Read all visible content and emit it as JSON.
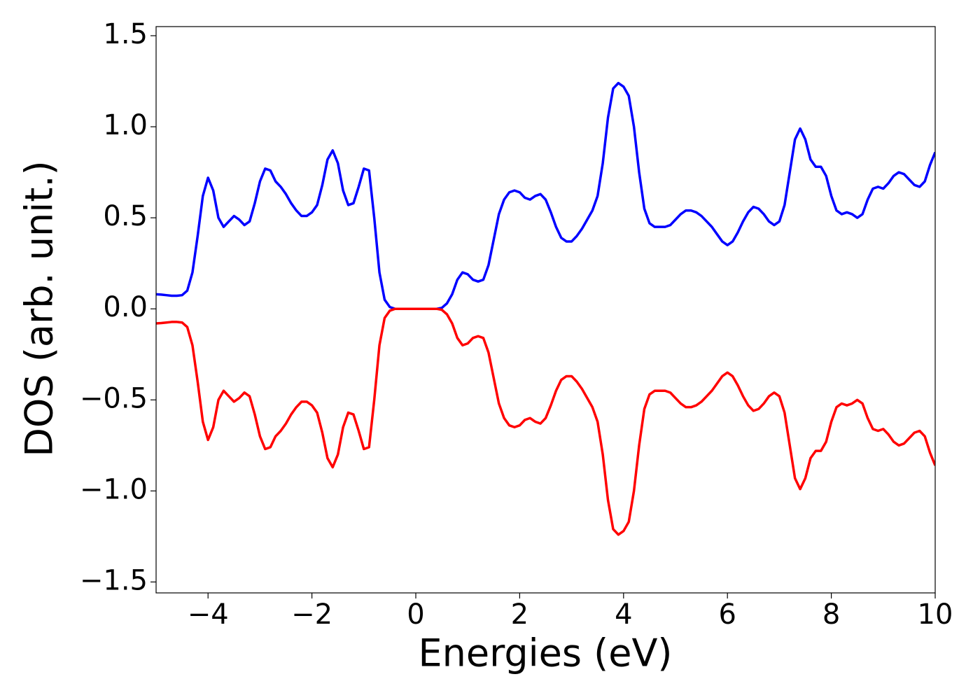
{
  "chart_data": {
    "type": "line",
    "xlabel": "Energies (eV)",
    "ylabel": "DOS (arb. unit.)",
    "xlim": [
      -5,
      10
    ],
    "ylim": [
      -1.56,
      1.55
    ],
    "xticks": [
      {
        "value": -4,
        "label": "−4"
      },
      {
        "value": -2,
        "label": "−2"
      },
      0,
      2,
      4,
      6,
      8,
      10
    ],
    "yticks": [
      {
        "value": -1.5,
        "label": "−1.5"
      },
      {
        "value": -1.0,
        "label": "−1.0"
      },
      {
        "value": -0.5,
        "label": "−0.5"
      },
      {
        "value": 0.0,
        "label": "0.0"
      },
      {
        "value": 0.5,
        "label": "0.5"
      },
      {
        "value": 1.0,
        "label": "1.0"
      },
      {
        "value": 1.5,
        "label": "1.5"
      }
    ],
    "x": [
      -5,
      -4.9,
      -4.8,
      -4.7,
      -4.6,
      -4.5,
      -4.4,
      -4.3,
      -4.2,
      -4.1,
      -4,
      -3.9,
      -3.8,
      -3.7,
      -3.6,
      -3.5,
      -3.4,
      -3.3,
      -3.2,
      -3.1,
      -3,
      -2.9,
      -2.8,
      -2.7,
      -2.6,
      -2.5,
      -2.4,
      -2.3,
      -2.2,
      -2.1,
      -2,
      -1.9,
      -1.8,
      -1.7,
      -1.6,
      -1.5,
      -1.4,
      -1.3,
      -1.2,
      -1.1,
      -1,
      -0.9,
      -0.8,
      -0.7,
      -0.6,
      -0.5,
      -0.4,
      -0.3,
      -0.2,
      -0.1,
      0,
      0.1,
      0.2,
      0.3,
      0.4,
      0.5,
      0.6,
      0.7,
      0.8,
      0.9,
      1,
      1.1,
      1.2,
      1.3,
      1.4,
      1.5,
      1.6,
      1.7,
      1.8,
      1.9,
      2,
      2.1,
      2.2,
      2.3,
      2.4,
      2.5,
      2.6,
      2.7,
      2.8,
      2.9,
      3,
      3.1,
      3.2,
      3.3,
      3.4,
      3.5,
      3.6,
      3.7,
      3.8,
      3.9,
      4,
      4.1,
      4.2,
      4.3,
      4.4,
      4.5,
      4.6,
      4.7,
      4.8,
      4.9,
      5,
      5.1,
      5.2,
      5.3,
      5.4,
      5.5,
      5.6,
      5.7,
      5.8,
      5.9,
      6,
      6.1,
      6.2,
      6.3,
      6.4,
      6.5,
      6.6,
      6.7,
      6.8,
      6.9,
      7,
      7.1,
      7.2,
      7.3,
      7.4,
      7.5,
      7.6,
      7.7,
      7.8,
      7.9,
      8,
      8.1,
      8.2,
      8.3,
      8.4,
      8.5,
      8.6,
      8.7,
      8.8,
      8.9,
      9,
      9.1,
      9.2,
      9.3,
      9.4,
      9.5,
      9.6,
      9.7,
      9.8,
      9.9,
      10
    ],
    "series": [
      {
        "color": "#0000ff",
        "values": [
          0.08,
          0.078,
          0.075,
          0.072,
          0.072,
          0.075,
          0.1,
          0.2,
          0.4,
          0.62,
          0.72,
          0.65,
          0.5,
          0.45,
          0.48,
          0.51,
          0.49,
          0.46,
          0.48,
          0.58,
          0.7,
          0.77,
          0.76,
          0.7,
          0.67,
          0.63,
          0.58,
          0.54,
          0.51,
          0.51,
          0.53,
          0.57,
          0.68,
          0.82,
          0.87,
          0.8,
          0.65,
          0.57,
          0.58,
          0.67,
          0.77,
          0.76,
          0.5,
          0.2,
          0.05,
          0.01,
          0,
          0,
          0,
          0,
          0,
          0,
          0,
          0,
          0,
          0.005,
          0.03,
          0.08,
          0.16,
          0.2,
          0.19,
          0.16,
          0.15,
          0.16,
          0.24,
          0.38,
          0.52,
          0.6,
          0.64,
          0.65,
          0.64,
          0.61,
          0.6,
          0.62,
          0.63,
          0.6,
          0.53,
          0.45,
          0.39,
          0.37,
          0.37,
          0.4,
          0.44,
          0.49,
          0.54,
          0.62,
          0.8,
          1.05,
          1.21,
          1.24,
          1.22,
          1.17,
          1.0,
          0.75,
          0.55,
          0.47,
          0.45,
          0.45,
          0.45,
          0.46,
          0.49,
          0.52,
          0.54,
          0.54,
          0.53,
          0.51,
          0.48,
          0.45,
          0.41,
          0.37,
          0.35,
          0.37,
          0.42,
          0.48,
          0.53,
          0.56,
          0.55,
          0.52,
          0.48,
          0.46,
          0.48,
          0.57,
          0.75,
          0.93,
          0.99,
          0.93,
          0.82,
          0.78,
          0.78,
          0.73,
          0.62,
          0.54,
          0.52,
          0.53,
          0.52,
          0.5,
          0.52,
          0.6,
          0.66,
          0.67,
          0.66,
          0.69,
          0.73,
          0.75,
          0.74,
          0.71,
          0.68,
          0.67,
          0.7,
          0.79,
          0.86
        ]
      },
      {
        "color": "#ff0000",
        "values": [
          -0.08,
          -0.078,
          -0.075,
          -0.072,
          -0.072,
          -0.075,
          -0.1,
          -0.2,
          -0.4,
          -0.62,
          -0.72,
          -0.65,
          -0.5,
          -0.45,
          -0.48,
          -0.51,
          -0.49,
          -0.46,
          -0.48,
          -0.58,
          -0.7,
          -0.77,
          -0.76,
          -0.7,
          -0.67,
          -0.63,
          -0.58,
          -0.54,
          -0.51,
          -0.51,
          -0.53,
          -0.57,
          -0.68,
          -0.82,
          -0.87,
          -0.8,
          -0.65,
          -0.57,
          -0.58,
          -0.67,
          -0.77,
          -0.76,
          -0.5,
          -0.2,
          -0.05,
          -0.01,
          0,
          0,
          0,
          0,
          0,
          0,
          0,
          0,
          0,
          -0.005,
          -0.03,
          -0.08,
          -0.16,
          -0.2,
          -0.19,
          -0.16,
          -0.15,
          -0.16,
          -0.24,
          -0.38,
          -0.52,
          -0.6,
          -0.64,
          -0.65,
          -0.64,
          -0.61,
          -0.6,
          -0.62,
          -0.63,
          -0.6,
          -0.53,
          -0.45,
          -0.39,
          -0.37,
          -0.37,
          -0.4,
          -0.44,
          -0.49,
          -0.54,
          -0.62,
          -0.8,
          -1.05,
          -1.21,
          -1.24,
          -1.22,
          -1.17,
          -1.0,
          -0.75,
          -0.55,
          -0.47,
          -0.45,
          -0.45,
          -0.45,
          -0.46,
          -0.49,
          -0.52,
          -0.54,
          -0.54,
          -0.53,
          -0.51,
          -0.48,
          -0.45,
          -0.41,
          -0.37,
          -0.35,
          -0.37,
          -0.42,
          -0.48,
          -0.53,
          -0.56,
          -0.55,
          -0.52,
          -0.48,
          -0.46,
          -0.48,
          -0.57,
          -0.75,
          -0.93,
          -0.99,
          -0.93,
          -0.82,
          -0.78,
          -0.78,
          -0.73,
          -0.62,
          -0.54,
          -0.52,
          -0.53,
          -0.52,
          -0.5,
          -0.52,
          -0.6,
          -0.66,
          -0.67,
          -0.66,
          -0.69,
          -0.73,
          -0.75,
          -0.74,
          -0.71,
          -0.68,
          -0.67,
          -0.7,
          -0.79,
          -0.86
        ]
      }
    ]
  }
}
